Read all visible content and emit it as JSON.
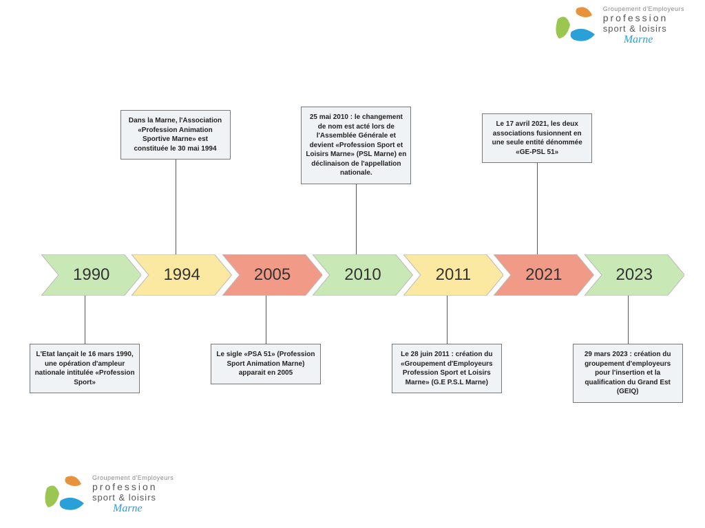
{
  "logo": {
    "line1": "Groupement d'Employeurs",
    "line2": "profession",
    "line3": "sport & loisirs",
    "line4": "Marne",
    "colors": {
      "orange": "#e8923e",
      "green": "#9ac651",
      "blue": "#2aa0d8",
      "text": "#555555",
      "subtext": "#888888"
    }
  },
  "timeline": {
    "type": "timeline-chevron",
    "arrow_colors": {
      "green": "#c8e8b6",
      "yellow": "#fbe9a2",
      "red": "#f19a87"
    },
    "stroke": "#b8b8b8",
    "label_fontsize": 24,
    "label_color": "#333333",
    "items": [
      {
        "year": "1990",
        "color": "green"
      },
      {
        "year": "1994",
        "color": "yellow"
      },
      {
        "year": "2005",
        "color": "red"
      },
      {
        "year": "2010",
        "color": "green"
      },
      {
        "year": "2011",
        "color": "yellow"
      },
      {
        "year": "2021",
        "color": "red"
      },
      {
        "year": "2023",
        "color": "green"
      }
    ]
  },
  "callouts": {
    "background": "#f0f3f5",
    "border": "#777777",
    "fontsize": 10,
    "items": [
      {
        "idx": 0,
        "pos": "bottom",
        "text": "L'Etat lançait le 16 mars 1990, une opération d'ampleur nationale intitulée «Profession Sport»"
      },
      {
        "idx": 1,
        "pos": "top",
        "text": "Dans la Marne, l'Association «Profession Animation Sportive Marne» est constituée le 30 mai 1994"
      },
      {
        "idx": 2,
        "pos": "bottom",
        "text": "Le sigle «PSA 51» (Profession Sport Animation Marne) apparait en 2005"
      },
      {
        "idx": 3,
        "pos": "top",
        "text": "25 mai 2010 : le changement de nom est acté lors de l'Assemblée Générale et devient «Profession Sport et Loisirs Marne» (PSL Marne) en déclinaison de l'appellation nationale."
      },
      {
        "idx": 4,
        "pos": "bottom",
        "text": "Le 28 juin 2011 : création du «Groupement d'Employeurs Profession Sport et Loisirs Marne» (G.E P.S.L Marne)"
      },
      {
        "idx": 5,
        "pos": "top",
        "text": "Le 17 avril 2021, les deux associations fusionnent en une seule entité dénommée «GE-PSL 51»"
      },
      {
        "idx": 6,
        "pos": "bottom",
        "text": "29 mars 2023 : création du groupement d'employeurs pour l'insertion et la qualification du Grand Est (GEIQ)"
      }
    ]
  }
}
